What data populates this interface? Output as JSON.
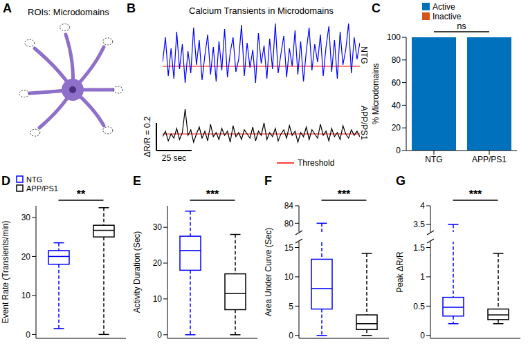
{
  "chart_data": [
    {
      "panel": "A",
      "type": "diagram",
      "title": "ROIs: Microdomains"
    },
    {
      "panel": "B",
      "type": "line",
      "title": "Calcium Transients in Microdomains",
      "tick_labels": false,
      "xlim": [
        0,
        140
      ],
      "x": [
        0,
        2,
        4,
        6,
        8,
        10,
        12,
        14,
        16,
        18,
        20,
        22,
        24,
        26,
        28,
        30,
        32,
        34,
        36,
        38,
        40,
        42,
        44,
        46,
        48,
        50,
        52,
        54,
        56,
        58,
        60,
        62,
        64,
        66,
        68,
        70,
        72,
        74,
        76,
        78,
        80,
        82,
        84,
        86,
        88,
        90,
        92,
        94,
        96,
        98,
        100,
        102,
        104,
        106,
        108,
        110,
        112,
        114,
        116,
        118,
        120,
        122,
        124,
        126,
        128,
        130,
        132,
        134,
        136,
        138,
        140
      ],
      "series": [
        {
          "name": "NTG",
          "color": "#0000ff",
          "ylim": [
            0,
            0.5
          ],
          "threshold": 0.17,
          "values": [
            0.2,
            0.38,
            0.1,
            0.3,
            0.08,
            0.42,
            0.15,
            0.33,
            0.05,
            0.28,
            0.12,
            0.45,
            0.18,
            0.36,
            0.07,
            0.25,
            0.4,
            0.11,
            0.31,
            0.06,
            0.35,
            0.14,
            0.44,
            0.09,
            0.27,
            0.38,
            0.13,
            0.22,
            0.47,
            0.1,
            0.34,
            0.16,
            0.29,
            0.05,
            0.41,
            0.19,
            0.32,
            0.08,
            0.37,
            0.15,
            0.48,
            0.12,
            0.26,
            0.39,
            0.09,
            0.3,
            0.17,
            0.43,
            0.11,
            0.35,
            0.06,
            0.28,
            0.45,
            0.14,
            0.33,
            0.2,
            0.4,
            0.1,
            0.31,
            0.46,
            0.13,
            0.36,
            0.08,
            0.42,
            0.18,
            0.29,
            0.48,
            0.12,
            0.38,
            0.22,
            0.34
          ]
        },
        {
          "name": "APP/PS1",
          "color": "#000000",
          "ylim": [
            0,
            0.4
          ],
          "threshold": 0.12,
          "values": [
            0.1,
            0.14,
            0.07,
            0.12,
            0.09,
            0.16,
            0.08,
            0.13,
            0.3,
            0.11,
            0.15,
            0.06,
            0.12,
            0.17,
            0.09,
            0.14,
            0.07,
            0.19,
            0.1,
            0.13,
            0.08,
            0.16,
            0.11,
            0.14,
            0.06,
            0.18,
            0.1,
            0.13,
            0.08,
            0.15,
            0.12,
            0.09,
            0.17,
            0.07,
            0.14,
            0.11,
            0.2,
            0.08,
            0.13,
            0.1,
            0.16,
            0.07,
            0.12,
            0.15,
            0.09,
            0.18,
            0.11,
            0.14,
            0.06,
            0.13,
            0.1,
            0.17,
            0.08,
            0.15,
            0.12,
            0.09,
            0.19,
            0.11,
            0.14,
            0.07,
            0.16,
            0.1,
            0.13,
            0.08,
            0.18,
            0.12,
            0.09,
            0.15,
            0.11,
            0.14,
            0.1
          ]
        }
      ],
      "threshold_label": "Threshold",
      "threshold_color": "#ff0000",
      "legend": "lower right",
      "scale_bar": {
        "y": 0.2,
        "y_label": "ΔR/R = 0.2",
        "x": 25,
        "x_label": "25 sec"
      }
    },
    {
      "panel": "C",
      "type": "bar",
      "stacked": true,
      "categories": [
        "NTG",
        "APP/PS1"
      ],
      "series": [
        {
          "name": "Active",
          "color": "#0072bd",
          "values": [
            100,
            100
          ]
        },
        {
          "name": "Inactive",
          "color": "#d95319",
          "values": [
            0,
            0
          ]
        }
      ],
      "y_label": "% Microdomains",
      "ylim": [
        0,
        100
      ],
      "yticks": [
        0,
        20,
        40,
        60,
        80,
        100
      ],
      "legend": "top",
      "significance": "ns"
    },
    {
      "panel": "D",
      "type": "box",
      "y_label": "Event Rate (Transients/min)",
      "ylim": [
        -1,
        33
      ],
      "yticks": [
        0,
        10,
        20,
        30
      ],
      "tick_labels": "y",
      "legend": "upper left",
      "significance": "**",
      "series": [
        {
          "name": "NTG",
          "color": "#0000ff",
          "min": 1.5,
          "q1": 18,
          "median": 20,
          "q3": 21.5,
          "max": 23.5
        },
        {
          "name": "APP/PS1",
          "color": "#000000",
          "min": 0,
          "q1": 25,
          "median": 26.7,
          "q3": 28,
          "max": 32.5
        }
      ]
    },
    {
      "panel": "E",
      "type": "box",
      "y_label": "Activity Duration (Sec)",
      "ylim": [
        -1,
        36
      ],
      "yticks": [
        0,
        10,
        20,
        30
      ],
      "tick_labels": "y",
      "significance": "***",
      "series": [
        {
          "color": "#0000ff",
          "min": 0,
          "q1": 18,
          "median": 23.5,
          "q3": 27.5,
          "max": 34.5
        },
        {
          "color": "#000000",
          "min": 0,
          "q1": 7,
          "median": 11.5,
          "q3": 17,
          "max": 28
        }
      ]
    },
    {
      "panel": "F",
      "type": "box",
      "y_label": "Area Under Curve (Sec)",
      "ylim": [
        -0.5,
        16
      ],
      "yticks": [
        0,
        5,
        10,
        15
      ],
      "break": {
        "ylim": [
          78,
          84
        ],
        "yticks": [
          80,
          84
        ]
      },
      "tick_labels": "y",
      "significance": "***",
      "series": [
        {
          "color": "#0000ff",
          "min": 0,
          "q1": 4.5,
          "median": 8,
          "q3": 13,
          "max": 80
        },
        {
          "color": "#000000",
          "min": 0,
          "q1": 1,
          "median": 2,
          "q3": 3.5,
          "max": 14
        }
      ]
    },
    {
      "panel": "G",
      "type": "box",
      "y_label": "Peak ΔR/R",
      "ylim": [
        -0.05,
        1.6
      ],
      "yticks": [
        0,
        0.5,
        1,
        1.5
      ],
      "break": {
        "ylim": [
          3.3,
          4
        ],
        "yticks": [
          3.5,
          4
        ]
      },
      "tick_labels": "y",
      "significance": "***",
      "series": [
        {
          "color": "#0000ff",
          "min": 0.2,
          "q1": 0.33,
          "median": 0.48,
          "q3": 0.65,
          "max": 3.5
        },
        {
          "color": "#000000",
          "min": 0.2,
          "q1": 0.27,
          "median": 0.35,
          "q3": 0.45,
          "max": 1.4
        }
      ]
    }
  ]
}
